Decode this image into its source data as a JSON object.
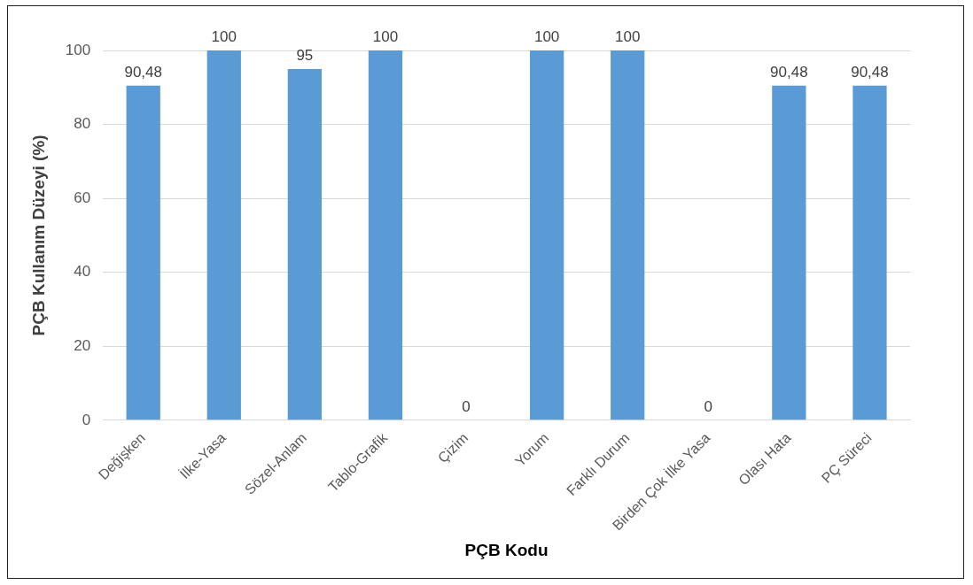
{
  "chart_data": {
    "type": "bar",
    "xlabel": "PÇB Kodu",
    "ylabel": "PÇB Kullanım Düzeyi (%)",
    "categories": [
      "Değişken",
      "İlke-Yasa",
      "Sözel-Anlam",
      "Tablo-Grafik",
      "Çizim",
      "Yorum",
      "Farklı Durum",
      "Birden Çok İlke Yasa",
      "Olası Hata",
      "PÇ Süreci"
    ],
    "values": [
      90.48,
      100,
      95,
      100,
      0,
      100,
      100,
      0,
      90.48,
      90.48
    ],
    "value_labels": [
      "90,48",
      "100",
      "95",
      "100",
      "0",
      "100",
      "100",
      "0",
      "90,48",
      "90,48"
    ],
    "color": "#5b9bd5",
    "ylim": [
      0,
      100
    ],
    "yticks": [
      0,
      20,
      40,
      60,
      80,
      100
    ],
    "grid": "y",
    "legend": false
  }
}
